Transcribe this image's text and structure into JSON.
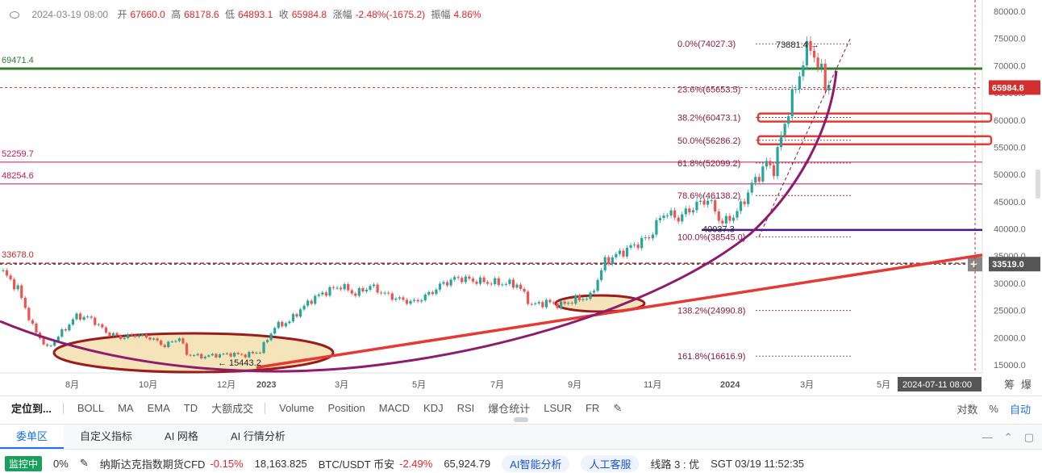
{
  "info_bar": {
    "datetime": "2024-03-19 08:00",
    "open_label": "开",
    "open": "67660.0",
    "high_label": "高",
    "high": "68178.6",
    "low_label": "低",
    "low": "64893.1",
    "close_label": "收",
    "close": "65984.8",
    "change_label": "涨幅",
    "change": "-2.48%(-1675.2)",
    "amplitude_label": "振幅",
    "amplitude": "4.86%"
  },
  "chart_data": {
    "type": "candlestick",
    "ylim": [
      13000,
      82000
    ],
    "y_ticks": [
      "80000.0",
      "75000.0",
      "70000.0",
      "65000.0",
      "60000.0",
      "55000.0",
      "50000.0",
      "45000.0",
      "40000.0",
      "35000.0",
      "30000.0",
      "25000.0",
      "20000.0",
      "15000.0"
    ],
    "x_ticks": [
      "8月",
      "10月",
      "12月",
      "2023",
      "3月",
      "5月",
      "7月",
      "9月",
      "11月",
      "2024",
      "3月",
      "5月"
    ],
    "current_price": "65984.8",
    "crosshair_price": "33519.0",
    "crosshair_time": "2024-07-11 08:00",
    "horizontal_levels": [
      {
        "label": "69471.4",
        "value": 69471.4,
        "color": "#2e7d32"
      },
      {
        "label": "52259.7",
        "value": 52259.7,
        "color": "#c2185b"
      },
      {
        "label": "48254.6",
        "value": 48254.6,
        "color": "#c2185b"
      },
      {
        "label": "33678.0",
        "value": 33678.0,
        "color": "#c62828"
      }
    ],
    "fib_levels": [
      {
        "label": "0.0%(74027.3)",
        "value": 74027.3
      },
      {
        "label": "23.6%(65653.5)",
        "value": 65653.5
      },
      {
        "label": "38.2%(60473.1)",
        "value": 60473.1
      },
      {
        "label": "50.0%(56286.2)",
        "value": 56286.2
      },
      {
        "label": "61.8%(52099.2)",
        "value": 52099.2
      },
      {
        "label": "78.6%(46138.2)",
        "value": 46138.2
      },
      {
        "label": "100.0%(38545.0)",
        "value": 38545.0
      },
      {
        "label": "138.2%(24990.8)",
        "value": 24990.8
      },
      {
        "label": "161.8%(16616.9)",
        "value": 16616.9
      }
    ],
    "annotations": [
      {
        "label": "73881.4",
        "value": 73881.4
      },
      {
        "label": "40037.3",
        "value": 40037.3
      },
      {
        "label": "15443.2",
        "value": 15443.2
      }
    ],
    "purple_level": 39800,
    "price_path": [
      [
        0,
        32000
      ],
      [
        4,
        29000
      ],
      [
        8,
        22000
      ],
      [
        12,
        18000
      ],
      [
        16,
        21000
      ],
      [
        20,
        24000
      ],
      [
        24,
        23500
      ],
      [
        28,
        21000
      ],
      [
        32,
        20000
      ],
      [
        36,
        20500
      ],
      [
        40,
        20000
      ],
      [
        44,
        18500
      ],
      [
        48,
        20000
      ],
      [
        50,
        17000
      ],
      [
        54,
        16500
      ],
      [
        58,
        16800
      ],
      [
        62,
        17000
      ],
      [
        66,
        16800
      ],
      [
        70,
        17500
      ],
      [
        74,
        22000
      ],
      [
        78,
        23000
      ],
      [
        80,
        24500
      ],
      [
        84,
        27000
      ],
      [
        88,
        28500
      ],
      [
        92,
        29500
      ],
      [
        96,
        28000
      ],
      [
        100,
        29500
      ],
      [
        104,
        28000
      ],
      [
        108,
        27000
      ],
      [
        112,
        26500
      ],
      [
        116,
        28000
      ],
      [
        120,
        30000
      ],
      [
        124,
        31000
      ],
      [
        128,
        30500
      ],
      [
        132,
        30200
      ],
      [
        136,
        30000
      ],
      [
        140,
        29800
      ],
      [
        144,
        26000
      ],
      [
        148,
        26500
      ],
      [
        152,
        26000
      ],
      [
        156,
        27000
      ],
      [
        160,
        27500
      ],
      [
        164,
        34000
      ],
      [
        168,
        35500
      ],
      [
        172,
        37000
      ],
      [
        176,
        38500
      ],
      [
        180,
        43000
      ],
      [
        184,
        42000
      ],
      [
        188,
        44000
      ],
      [
        192,
        45500
      ],
      [
        196,
        41000
      ],
      [
        200,
        43000
      ],
      [
        204,
        48000
      ],
      [
        208,
        52000
      ],
      [
        210,
        51000
      ],
      [
        212,
        57000
      ],
      [
        214,
        62000
      ],
      [
        216,
        66000
      ],
      [
        218,
        71000
      ],
      [
        220,
        73800
      ],
      [
        222,
        70000
      ],
      [
        224,
        67000
      ],
      [
        226,
        66000
      ]
    ],
    "ellipses": [
      "low-2022",
      "consolidation-2023"
    ]
  },
  "indicators": {
    "locate": "定位到...",
    "items": [
      "BOLL",
      "MA",
      "EMA",
      "TD",
      "大额成交",
      "Volume",
      "Position",
      "MACD",
      "KDJ",
      "RSI",
      "爆仓统计",
      "LSUR",
      "FR"
    ],
    "right": [
      "对数",
      "%",
      "自动"
    ],
    "scale_labels": [
      "筹",
      "爆"
    ]
  },
  "tabs": [
    "委单区",
    "自定义指标",
    "AI 网格",
    "AI 行情分析"
  ],
  "status": {
    "monitor": "监控中",
    "fee": "0%",
    "ticker1_name": "纳斯达克指数期货CFD",
    "ticker1_change": "-0.15%",
    "ticker1_price": "18,163.825",
    "ticker2_name": "BTC/USDT 币安",
    "ticker2_change": "-2.49%",
    "ticker2_price": "65,924.79",
    "ai": "AI智能分析",
    "service": "人工客服",
    "line": "线路 3 : 优",
    "clock": "SGT 03/19 11:52:35"
  },
  "colors": {
    "up": "#26a69a",
    "down": "#ef5350",
    "fib": "#8b1a3a",
    "trend": "#e53935",
    "curve": "#8e1c6e",
    "ellipse_fill": "#f3dfae",
    "ellipse_stroke": "#9b1c1c"
  }
}
